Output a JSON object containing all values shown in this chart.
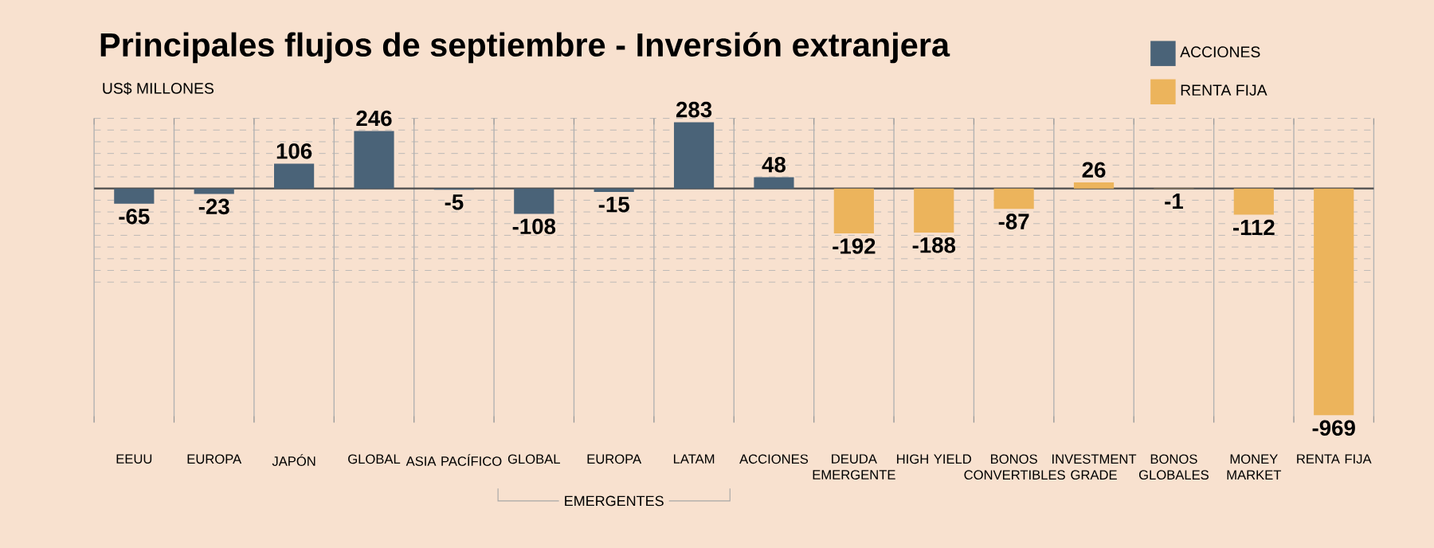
{
  "chart_data": {
    "type": "bar",
    "title": "Principales flujos de septiembre - Inversión extranjera",
    "subtitle": "US$ MILLONES",
    "categories": [
      "EEUU",
      "EUROPA",
      "JAPÓN",
      "GLOBAL",
      "ASIA PACÍFICO",
      "GLOBAL",
      "EUROPA",
      "LATAM",
      "ACCIONES",
      "DEUDA EMERGENTE",
      "HIGH YIELD",
      "BONOS CONVERTIBLES",
      "INVESTMENT GRADE",
      "BONOS GLOBALES",
      "MONEY MARKET",
      "RENTA FIJA"
    ],
    "series": [
      {
        "name": "ACCIONES",
        "color": "#4a6378",
        "values": [
          -65,
          -23,
          106,
          246,
          -5,
          -108,
          -15,
          283,
          48,
          null,
          null,
          null,
          null,
          null,
          null,
          null
        ],
        "value_labels": [
          "-65",
          "-23",
          "106",
          "246",
          "-5",
          "-108",
          "-15",
          "283",
          "48",
          null,
          null,
          null,
          null,
          null,
          null,
          null
        ]
      },
      {
        "name": "RENTA FIJA",
        "color": "#ecb45c",
        "values": [
          null,
          null,
          null,
          null,
          null,
          null,
          null,
          null,
          null,
          -192,
          -188,
          -87,
          26,
          -1,
          -112,
          -969
        ],
        "value_labels": [
          null,
          null,
          null,
          null,
          null,
          null,
          null,
          null,
          null,
          "-192",
          "-188",
          "-87",
          "26",
          "-1",
          "-112",
          "-969"
        ]
      }
    ],
    "annotations": [
      "EMERGENTES"
    ],
    "ylim": [
      -1000,
      300
    ],
    "yticks": [
      {
        "value": -400,
        "label": null
      },
      {
        "value": -350,
        "label": null
      },
      {
        "value": -300,
        "label": null
      },
      {
        "value": -250,
        "label": null
      },
      {
        "value": -200,
        "label": null
      },
      {
        "value": -150,
        "label": null
      },
      {
        "value": -100,
        "label": null
      },
      {
        "value": -50,
        "label": null
      },
      {
        "value": 0,
        "label": null
      },
      {
        "value": 50,
        "label": null
      },
      {
        "value": 100,
        "label": null
      },
      {
        "value": 150,
        "label": null
      },
      {
        "value": 200,
        "label": null
      },
      {
        "value": 250,
        "label": null
      },
      {
        "value": 300,
        "label": null
      }
    ],
    "grid": "y",
    "legend": "top right",
    "tick_labels": "x"
  }
}
